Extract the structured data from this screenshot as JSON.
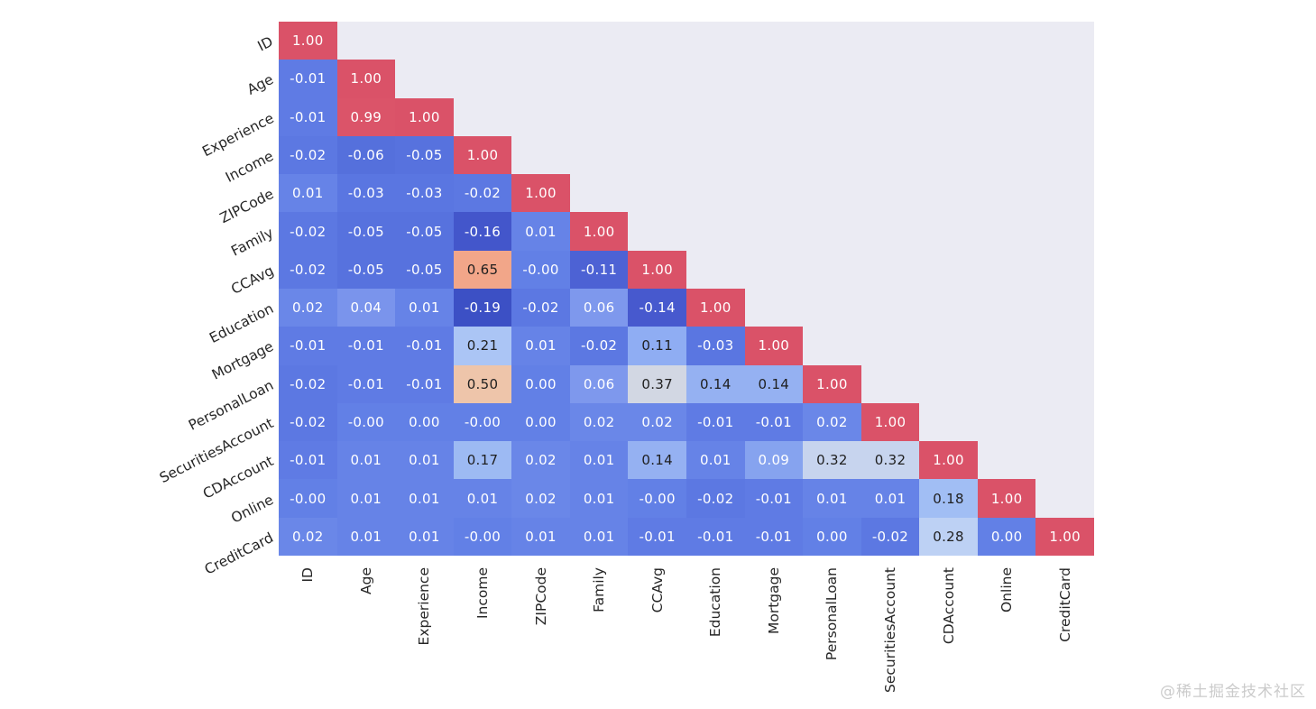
{
  "chart_data": {
    "type": "heatmap",
    "title": "",
    "subtitle": "",
    "legend": "none",
    "grid": false,
    "shape": "lower-triangle correlation matrix",
    "labels": [
      "ID",
      "Age",
      "Experience",
      "Income",
      "ZIPCode",
      "Family",
      "CCAvg",
      "Education",
      "Mortgage",
      "PersonalLoan",
      "SecuritiesAccount",
      "CDAccount",
      "Online",
      "CreditCard"
    ],
    "matrix_display": [
      [
        "1.00"
      ],
      [
        "-0.01",
        "1.00"
      ],
      [
        "-0.01",
        "0.99",
        "1.00"
      ],
      [
        "-0.02",
        "-0.06",
        "-0.05",
        "1.00"
      ],
      [
        "0.01",
        "-0.03",
        "-0.03",
        "-0.02",
        "1.00"
      ],
      [
        "-0.02",
        "-0.05",
        "-0.05",
        "-0.16",
        "0.01",
        "1.00"
      ],
      [
        "-0.02",
        "-0.05",
        "-0.05",
        "0.65",
        "-0.00",
        "-0.11",
        "1.00"
      ],
      [
        "0.02",
        "0.04",
        "0.01",
        "-0.19",
        "-0.02",
        "0.06",
        "-0.14",
        "1.00"
      ],
      [
        "-0.01",
        "-0.01",
        "-0.01",
        "0.21",
        "0.01",
        "-0.02",
        "0.11",
        "-0.03",
        "1.00"
      ],
      [
        "-0.02",
        "-0.01",
        "-0.01",
        "0.50",
        "0.00",
        "0.06",
        "0.37",
        "0.14",
        "0.14",
        "1.00"
      ],
      [
        "-0.02",
        "-0.00",
        "0.00",
        "-0.00",
        "0.00",
        "0.02",
        "0.02",
        "-0.01",
        "-0.01",
        "0.02",
        "1.00"
      ],
      [
        "-0.01",
        "0.01",
        "0.01",
        "0.17",
        "0.02",
        "0.01",
        "0.14",
        "0.01",
        "0.09",
        "0.32",
        "0.32",
        "1.00"
      ],
      [
        "-0.00",
        "0.01",
        "0.01",
        "0.01",
        "0.02",
        "0.01",
        "-0.00",
        "-0.02",
        "-0.01",
        "0.01",
        "0.01",
        "0.18",
        "1.00"
      ],
      [
        "0.02",
        "0.01",
        "0.01",
        "-0.00",
        "0.01",
        "0.01",
        "-0.01",
        "-0.01",
        "-0.01",
        "0.00",
        "-0.02",
        "0.28",
        "0.00",
        "1.00"
      ]
    ],
    "value_range": [
      -0.19,
      1.0
    ],
    "colormap_stops": [
      [
        -0.19,
        "#3C50C5"
      ],
      [
        -0.16,
        "#4356CB"
      ],
      [
        -0.14,
        "#4759CE"
      ],
      [
        -0.11,
        "#4D62D4"
      ],
      [
        -0.06,
        "#5570DC"
      ],
      [
        -0.05,
        "#5772DE"
      ],
      [
        -0.03,
        "#5A76E1"
      ],
      [
        -0.02,
        "#5C78E2"
      ],
      [
        -0.01,
        "#5F7BE4"
      ],
      [
        0.0,
        "#6280E6"
      ],
      [
        0.01,
        "#6683E7"
      ],
      [
        0.02,
        "#6A87E8"
      ],
      [
        0.04,
        "#7A94EC"
      ],
      [
        0.06,
        "#7E98ED"
      ],
      [
        0.09,
        "#86A3EF"
      ],
      [
        0.11,
        "#8FADF3"
      ],
      [
        0.14,
        "#95B1F2"
      ],
      [
        0.17,
        "#9DBAF3"
      ],
      [
        0.18,
        "#A1BEF4"
      ],
      [
        0.21,
        "#ABC5F5"
      ],
      [
        0.28,
        "#BDD1F4"
      ],
      [
        0.32,
        "#C7D4EE"
      ],
      [
        0.37,
        "#D2D7E3"
      ],
      [
        0.5,
        "#EEC5AA"
      ],
      [
        0.65,
        "#F2A689"
      ],
      [
        1.0,
        "#DA5268"
      ]
    ],
    "axes_background": "#EBEBF3",
    "annotation_text_dark": "#1F1F1F",
    "annotation_text_light": "#FFFFFF",
    "tick_label_color": "#262626"
  },
  "watermark": {
    "text": "@稀土掘金技术社区",
    "color": "#CBCBCB"
  }
}
